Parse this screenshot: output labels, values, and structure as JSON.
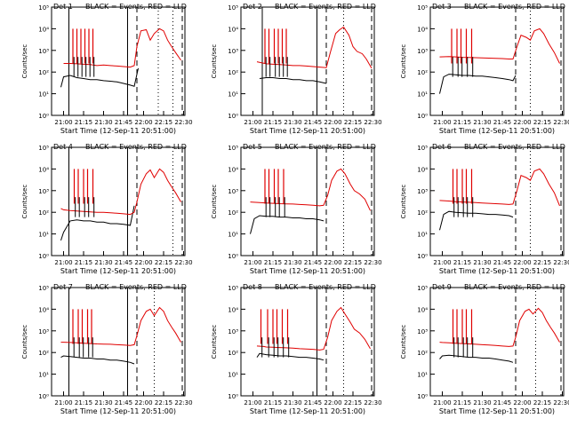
{
  "figure": {
    "ylabel": "Counts/sec",
    "xlabel": "Start Time (12-Sep-11 20:51:00)",
    "legend_text": "BLACK = Events, RED = LLD",
    "x_ticks": [
      "21:00",
      "21:15",
      "21:30",
      "21:45",
      "22:00",
      "22:15",
      "22:30"
    ],
    "y_ticks": [
      "10⁰",
      "10¹",
      "10²",
      "10³",
      "10⁴",
      "10⁵"
    ],
    "colors": {
      "events": "#000000",
      "lld": "#e00000",
      "axes": "#000000"
    }
  },
  "chart_data": [
    {
      "type": "line",
      "title": "Det 1",
      "xlim": [
        "20:51",
        "22:31"
      ],
      "ylim": [
        1,
        100000
      ],
      "log_y": true,
      "grid": false,
      "series": [
        {
          "name": "BLACK = Events",
          "x": [
            "20:58",
            "21:00",
            "21:05",
            "21:10",
            "21:15",
            "21:20",
            "21:25",
            "21:30",
            "21:35",
            "21:40",
            "21:45",
            "21:50",
            "21:53",
            "21:56"
          ],
          "y": [
            20,
            60,
            70,
            55,
            50,
            45,
            45,
            40,
            38,
            35,
            30,
            25,
            22,
            150
          ]
        },
        {
          "name": "RED = LLD",
          "x": [
            "20:58",
            "21:00",
            "21:05",
            "21:10",
            "21:15",
            "21:20",
            "21:25",
            "21:30",
            "21:35",
            "21:40",
            "21:45",
            "21:50",
            "21:53",
            "21:55",
            "21:58",
            "22:02",
            "22:05",
            "22:08",
            "22:12",
            "22:15",
            "22:18",
            "22:21",
            "22:24",
            "22:28"
          ],
          "y": [
            null,
            250,
            250,
            240,
            230,
            220,
            200,
            210,
            200,
            190,
            180,
            170,
            200,
            1500,
            8000,
            9000,
            3000,
            6000,
            10000,
            8000,
            3000,
            1500,
            800,
            350
          ]
        }
      ],
      "spikes": [
        "21:07",
        "21:10",
        "21:13",
        "21:16",
        "21:19",
        "21:22"
      ],
      "vlines_solid": [
        "21:04",
        "21:48"
      ],
      "vlines_dashed": [
        "21:55",
        "22:29"
      ],
      "vlines_dotted": [
        "22:11",
        "22:22"
      ]
    },
    {
      "type": "line",
      "title": "Det 2",
      "xlim": [
        "20:51",
        "22:31"
      ],
      "ylim": [
        1,
        100000
      ],
      "log_y": true,
      "grid": false,
      "series": [
        {
          "name": "BLACK = Events",
          "x": [
            "21:05",
            "21:10",
            "21:15",
            "21:20",
            "21:25",
            "21:30",
            "21:35",
            "21:40",
            "21:45",
            "21:50",
            "21:55"
          ],
          "y": [
            50,
            55,
            55,
            50,
            50,
            45,
            45,
            40,
            40,
            35,
            30
          ]
        },
        {
          "name": "RED = LLD",
          "x": [
            "21:03",
            "21:10",
            "21:15",
            "21:20",
            "21:25",
            "21:30",
            "21:35",
            "21:40",
            "21:45",
            "21:50",
            "21:55",
            "21:58",
            "22:02",
            "22:05",
            "22:08",
            "22:12",
            "22:15",
            "22:18",
            "22:22",
            "22:25",
            "22:29"
          ],
          "y": [
            300,
            240,
            230,
            220,
            210,
            200,
            200,
            190,
            180,
            170,
            160,
            800,
            6000,
            9000,
            12000,
            5000,
            1500,
            900,
            700,
            400,
            150
          ]
        }
      ],
      "spikes": [
        "21:09",
        "21:12",
        "21:16",
        "21:19",
        "21:22",
        "21:25"
      ],
      "vlines_solid": [
        "21:07",
        "21:48"
      ],
      "vlines_dashed": [
        "21:55",
        "22:29"
      ],
      "vlines_dotted": [
        "22:08"
      ]
    },
    {
      "type": "line",
      "title": "Det 3",
      "xlim": [
        "20:51",
        "22:31"
      ],
      "ylim": [
        1,
        100000
      ],
      "log_y": true,
      "grid": false,
      "series": [
        {
          "name": "BLACK = Events",
          "x": [
            "20:58",
            "21:01",
            "21:05",
            "21:10",
            "21:15",
            "21:20",
            "21:25",
            "21:30",
            "21:35",
            "21:40",
            "21:45",
            "21:50",
            "21:53",
            "21:55"
          ],
          "y": [
            10,
            60,
            80,
            75,
            70,
            70,
            65,
            65,
            60,
            55,
            50,
            45,
            40,
            70
          ]
        },
        {
          "name": "RED = LLD",
          "x": [
            "20:58",
            "21:05",
            "21:10",
            "21:15",
            "21:20",
            "21:25",
            "21:30",
            "21:35",
            "21:40",
            "21:45",
            "21:50",
            "21:53",
            "21:56",
            "21:59",
            "22:03",
            "22:06",
            "22:09",
            "22:13",
            "22:16",
            "22:20",
            "22:24",
            "22:28"
          ],
          "y": [
            500,
            520,
            500,
            480,
            470,
            460,
            450,
            440,
            430,
            420,
            400,
            400,
            1500,
            5000,
            4000,
            3000,
            8000,
            10000,
            6000,
            2000,
            800,
            250
          ]
        }
      ],
      "spikes": [
        "21:07",
        "21:11",
        "21:14",
        "21:18",
        "21:22"
      ],
      "vlines_solid": [],
      "vlines_dashed": [
        "21:55",
        "22:29"
      ],
      "vlines_dotted": [
        "22:06"
      ]
    },
    {
      "type": "line",
      "title": "Det 4",
      "xlim": [
        "20:51",
        "22:31"
      ],
      "ylim": [
        1,
        100000
      ],
      "log_y": true,
      "grid": false,
      "series": [
        {
          "name": "BLACK = Events",
          "x": [
            "20:58",
            "21:00",
            "21:05",
            "21:10",
            "21:15",
            "21:20",
            "21:25",
            "21:30",
            "21:35",
            "21:40",
            "21:45",
            "21:50",
            "21:53"
          ],
          "y": [
            5,
            12,
            40,
            45,
            40,
            40,
            35,
            35,
            30,
            30,
            28,
            25,
            200
          ]
        },
        {
          "name": "RED = LLD",
          "x": [
            "20:58",
            "21:00",
            "21:05",
            "21:10",
            "21:15",
            "21:20",
            "21:25",
            "21:30",
            "21:35",
            "21:40",
            "21:45",
            "21:50",
            "21:53",
            "21:55",
            "21:58",
            "22:02",
            "22:05",
            "22:08",
            "22:12",
            "22:15",
            "22:18",
            "22:21",
            "22:24",
            "22:28"
          ],
          "y": [
            150,
            130,
            120,
            115,
            110,
            105,
            100,
            100,
            95,
            90,
            85,
            80,
            100,
            300,
            2000,
            6000,
            9000,
            4000,
            10000,
            7000,
            3000,
            1500,
            800,
            300
          ]
        }
      ],
      "spikes": [
        "21:08",
        "21:11",
        "21:15",
        "21:18",
        "21:22"
      ],
      "vlines_solid": [
        "21:04",
        "21:48"
      ],
      "vlines_dashed": [
        "21:55",
        "22:29"
      ],
      "vlines_dotted": [
        "22:22"
      ]
    },
    {
      "type": "line",
      "title": "Det 5",
      "xlim": [
        "20:51",
        "22:31"
      ],
      "ylim": [
        1,
        100000
      ],
      "log_y": true,
      "grid": false,
      "series": [
        {
          "name": "BLACK = Events",
          "x": [
            "20:58",
            "21:01",
            "21:05",
            "21:10",
            "21:15",
            "21:20",
            "21:25",
            "21:30",
            "21:35",
            "21:40",
            "21:45",
            "21:50",
            "21:53"
          ],
          "y": [
            10,
            50,
            70,
            65,
            65,
            60,
            60,
            55,
            55,
            50,
            50,
            45,
            40
          ]
        },
        {
          "name": "RED = LLD",
          "x": [
            "20:58",
            "21:05",
            "21:10",
            "21:15",
            "21:20",
            "21:25",
            "21:30",
            "21:35",
            "21:40",
            "21:45",
            "21:50",
            "21:53",
            "21:56",
            "21:59",
            "22:03",
            "22:06",
            "22:09",
            "22:13",
            "22:16",
            "22:20",
            "22:24",
            "22:28"
          ],
          "y": [
            300,
            280,
            270,
            260,
            250,
            245,
            240,
            230,
            220,
            210,
            200,
            210,
            600,
            3000,
            8000,
            10000,
            6000,
            2000,
            1000,
            700,
            400,
            120
          ]
        }
      ],
      "spikes": [
        "21:09",
        "21:12",
        "21:16",
        "21:19",
        "21:23"
      ],
      "vlines_solid": [
        "21:48"
      ],
      "vlines_dashed": [
        "21:55",
        "22:29"
      ],
      "vlines_dotted": [
        "22:08"
      ]
    },
    {
      "type": "line",
      "title": "Det 6",
      "xlim": [
        "20:51",
        "22:31"
      ],
      "ylim": [
        1,
        100000
      ],
      "log_y": true,
      "grid": false,
      "series": [
        {
          "name": "BLACK = Events",
          "x": [
            "20:58",
            "21:01",
            "21:05",
            "21:10",
            "21:15",
            "21:20",
            "21:25",
            "21:30",
            "21:35",
            "21:40",
            "21:45",
            "21:50",
            "21:53"
          ],
          "y": [
            15,
            80,
            110,
            100,
            95,
            90,
            90,
            85,
            80,
            80,
            75,
            70,
            60
          ]
        },
        {
          "name": "RED = LLD",
          "x": [
            "20:58",
            "21:05",
            "21:10",
            "21:15",
            "21:20",
            "21:25",
            "21:30",
            "21:35",
            "21:40",
            "21:45",
            "21:50",
            "21:53",
            "21:56",
            "21:59",
            "22:03",
            "22:06",
            "22:09",
            "22:13",
            "22:16",
            "22:20",
            "22:24",
            "22:28"
          ],
          "y": [
            350,
            330,
            310,
            300,
            290,
            280,
            270,
            260,
            250,
            240,
            230,
            240,
            1000,
            5000,
            4000,
            3000,
            8000,
            10000,
            6000,
            2000,
            800,
            200
          ]
        }
      ],
      "spikes": [
        "21:08",
        "21:11",
        "21:15",
        "21:18",
        "21:22"
      ],
      "vlines_solid": [],
      "vlines_dashed": [
        "21:55",
        "22:29"
      ],
      "vlines_dotted": [
        "22:06"
      ]
    },
    {
      "type": "line",
      "title": "Det 7",
      "xlim": [
        "20:51",
        "22:31"
      ],
      "ylim": [
        1,
        100000
      ],
      "log_y": true,
      "grid": false,
      "series": [
        {
          "name": "BLACK = Events",
          "x": [
            "20:58",
            "21:00",
            "21:05",
            "21:10",
            "21:15",
            "21:20",
            "21:25",
            "21:30",
            "21:35",
            "21:40",
            "21:45",
            "21:50",
            "21:53"
          ],
          "y": [
            60,
            70,
            65,
            60,
            55,
            55,
            50,
            50,
            45,
            45,
            40,
            35,
            30
          ]
        },
        {
          "name": "RED = LLD",
          "x": [
            "20:58",
            "21:00",
            "21:05",
            "21:10",
            "21:15",
            "21:20",
            "21:25",
            "21:30",
            "21:35",
            "21:40",
            "21:45",
            "21:50",
            "21:53",
            "21:55",
            "21:58",
            "22:02",
            "22:05",
            "22:08",
            "22:12",
            "22:15",
            "22:18",
            "22:21",
            "22:24",
            "22:28"
          ],
          "y": [
            300,
            300,
            290,
            280,
            270,
            260,
            250,
            245,
            240,
            230,
            220,
            210,
            230,
            600,
            3000,
            8000,
            10000,
            5000,
            12000,
            8000,
            3000,
            1500,
            800,
            300
          ]
        }
      ],
      "spikes": [
        "21:07",
        "21:11",
        "21:14",
        "21:18",
        "21:21"
      ],
      "vlines_solid": [
        "21:04",
        "21:48"
      ],
      "vlines_dashed": [
        "21:55",
        "22:29"
      ],
      "vlines_dotted": [
        "22:08"
      ]
    },
    {
      "type": "line",
      "title": "Det 8",
      "xlim": [
        "20:51",
        "22:31"
      ],
      "ylim": [
        1,
        100000
      ],
      "log_y": true,
      "grid": false,
      "series": [
        {
          "name": "BLACK = Events",
          "x": [
            "21:03",
            "21:05",
            "21:10",
            "21:15",
            "21:20",
            "21:25",
            "21:30",
            "21:35",
            "21:40",
            "21:45",
            "21:50",
            "21:53"
          ],
          "y": [
            60,
            90,
            80,
            75,
            70,
            70,
            65,
            60,
            60,
            55,
            50,
            45
          ]
        },
        {
          "name": "RED = LLD",
          "x": [
            "21:03",
            "21:08",
            "21:10",
            "21:15",
            "21:20",
            "21:25",
            "21:30",
            "21:35",
            "21:40",
            "21:45",
            "21:50",
            "21:53",
            "21:56",
            "21:59",
            "22:03",
            "22:06",
            "22:09",
            "22:13",
            "22:16",
            "22:20",
            "22:24",
            "22:28"
          ],
          "y": [
            200,
            190,
            180,
            175,
            170,
            165,
            160,
            150,
            145,
            140,
            130,
            140,
            500,
            3000,
            8000,
            12000,
            6000,
            2500,
            1200,
            800,
            400,
            150
          ]
        }
      ],
      "spikes": [
        "21:06",
        "21:11",
        "21:15",
        "21:18",
        "21:22",
        "21:26"
      ],
      "vlines_solid": [
        "21:48"
      ],
      "vlines_dashed": [
        "21:55",
        "22:29"
      ],
      "vlines_dotted": [
        "22:08"
      ]
    },
    {
      "type": "line",
      "title": "Det 9",
      "xlim": [
        "20:51",
        "22:31"
      ],
      "ylim": [
        1,
        100000
      ],
      "log_y": true,
      "grid": false,
      "series": [
        {
          "name": "BLACK = Events",
          "x": [
            "20:58",
            "21:00",
            "21:05",
            "21:10",
            "21:15",
            "21:20",
            "21:25",
            "21:30",
            "21:35",
            "21:40",
            "21:45",
            "21:50",
            "21:53"
          ],
          "y": [
            50,
            70,
            75,
            70,
            65,
            60,
            60,
            55,
            55,
            50,
            45,
            40,
            35
          ]
        },
        {
          "name": "RED = LLD",
          "x": [
            "20:58",
            "21:00",
            "21:05",
            "21:10",
            "21:15",
            "21:20",
            "21:25",
            "21:30",
            "21:35",
            "21:40",
            "21:45",
            "21:50",
            "21:53",
            "21:55",
            "21:58",
            "22:02",
            "22:05",
            "22:08",
            "22:12",
            "22:15",
            "22:18",
            "22:21",
            "22:24",
            "22:28"
          ],
          "y": [
            300,
            290,
            280,
            270,
            260,
            250,
            240,
            230,
            220,
            210,
            200,
            190,
            200,
            500,
            3000,
            8000,
            10000,
            6000,
            11000,
            7000,
            3000,
            1500,
            800,
            300
          ]
        }
      ],
      "spikes": [
        "21:08",
        "21:11",
        "21:15",
        "21:18",
        "21:22"
      ],
      "vlines_solid": [],
      "vlines_dashed": [
        "21:55",
        "22:29"
      ],
      "vlines_dotted": [
        "22:10"
      ]
    }
  ]
}
